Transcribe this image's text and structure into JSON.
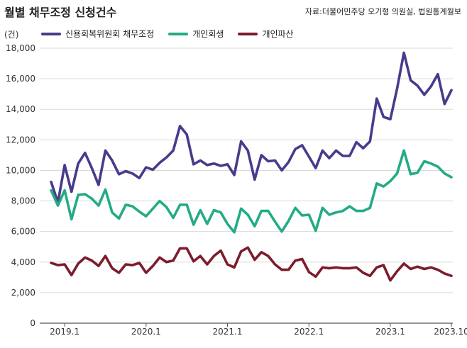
{
  "header": {
    "title": "월별 채무조정 신청건수",
    "source": "자료:더불어민주당 오기형 의원실, 법원통계월보",
    "unit": "(건)"
  },
  "chart_data": {
    "type": "line",
    "xlabel": "",
    "ylabel": "",
    "ylim": [
      0,
      18000
    ],
    "yticks": [
      0,
      2000,
      4000,
      6000,
      8000,
      10000,
      12000,
      14000,
      16000,
      18000
    ],
    "ytick_labels": [
      "0",
      "2,000",
      "4,000",
      "6,000",
      "8,000",
      "10,000",
      "12,000",
      "14,000",
      "16,000",
      "18,000"
    ],
    "xticks": [
      {
        "label": "2019.1",
        "index": 2
      },
      {
        "label": "2020.1",
        "index": 14
      },
      {
        "label": "2021.1",
        "index": 26
      },
      {
        "label": "2022.1",
        "index": 38
      },
      {
        "label": "2023.1",
        "index": 50
      },
      {
        "label": "2023.10",
        "index": 59
      }
    ],
    "grid": true,
    "legend_position": "top-left",
    "x": [
      "2018.11",
      "2018.12",
      "2019.1",
      "2019.2",
      "2019.3",
      "2019.4",
      "2019.5",
      "2019.6",
      "2019.7",
      "2019.8",
      "2019.9",
      "2019.10",
      "2019.11",
      "2019.12",
      "2020.1",
      "2020.2",
      "2020.3",
      "2020.4",
      "2020.5",
      "2020.6",
      "2020.7",
      "2020.8",
      "2020.9",
      "2020.10",
      "2020.11",
      "2020.12",
      "2021.1",
      "2021.2",
      "2021.3",
      "2021.4",
      "2021.5",
      "2021.6",
      "2021.7",
      "2021.8",
      "2021.9",
      "2021.10",
      "2021.11",
      "2021.12",
      "2022.1",
      "2022.2",
      "2022.3",
      "2022.4",
      "2022.5",
      "2022.6",
      "2022.7",
      "2022.8",
      "2022.9",
      "2022.10",
      "2022.11",
      "2022.12",
      "2023.1",
      "2023.2",
      "2023.3",
      "2023.4",
      "2023.5",
      "2023.6",
      "2023.7",
      "2023.8",
      "2023.9",
      "2023.10"
    ],
    "series": [
      {
        "name": "신용회복위원회 채무조정",
        "color": "#4a3a8c",
        "values": [
          9250,
          7900,
          10350,
          8600,
          10450,
          11150,
          10150,
          9050,
          11300,
          10650,
          9750,
          9950,
          9800,
          9500,
          10200,
          10050,
          10500,
          10850,
          11300,
          12900,
          12350,
          10400,
          10650,
          10350,
          10450,
          10300,
          10400,
          9700,
          11900,
          11300,
          9400,
          11000,
          10600,
          10650,
          10000,
          10550,
          11400,
          11650,
          10900,
          10150,
          11300,
          10800,
          11300,
          10950,
          10950,
          11850,
          11450,
          11900,
          14700,
          13500,
          13350,
          15350,
          17700,
          15900,
          15550,
          14950,
          15500,
          16300,
          14350,
          15250
        ]
      },
      {
        "name": "개인회생",
        "color": "#24ab86",
        "values": [
          8700,
          7700,
          8700,
          6800,
          8400,
          8450,
          8150,
          7700,
          8750,
          7250,
          6850,
          7750,
          7650,
          7300,
          7000,
          7500,
          8000,
          7600,
          6900,
          7750,
          7750,
          6450,
          7400,
          6500,
          7400,
          7250,
          6500,
          5950,
          7500,
          7100,
          6350,
          7350,
          7350,
          6650,
          6000,
          6700,
          7550,
          7050,
          7100,
          6050,
          7550,
          7100,
          7250,
          7350,
          7650,
          7350,
          7350,
          7550,
          9150,
          8950,
          9300,
          9800,
          11300,
          9750,
          9850,
          10600,
          10450,
          10250,
          9800,
          9550
        ]
      },
      {
        "name": "개인파산",
        "color": "#7c1c2c",
        "values": [
          3950,
          3800,
          3850,
          3150,
          3900,
          4300,
          4100,
          3750,
          4400,
          3600,
          3300,
          3850,
          3800,
          3950,
          3300,
          3750,
          4300,
          4000,
          4100,
          4900,
          4900,
          4050,
          4400,
          3850,
          4400,
          4750,
          3850,
          3650,
          4700,
          4950,
          4150,
          4650,
          4400,
          3850,
          3500,
          3500,
          4100,
          4200,
          3350,
          3050,
          3650,
          3600,
          3650,
          3600,
          3600,
          3650,
          3300,
          3100,
          3650,
          3800,
          2800,
          3400,
          3900,
          3550,
          3700,
          3550,
          3650,
          3500,
          3250,
          3100
        ]
      }
    ]
  }
}
